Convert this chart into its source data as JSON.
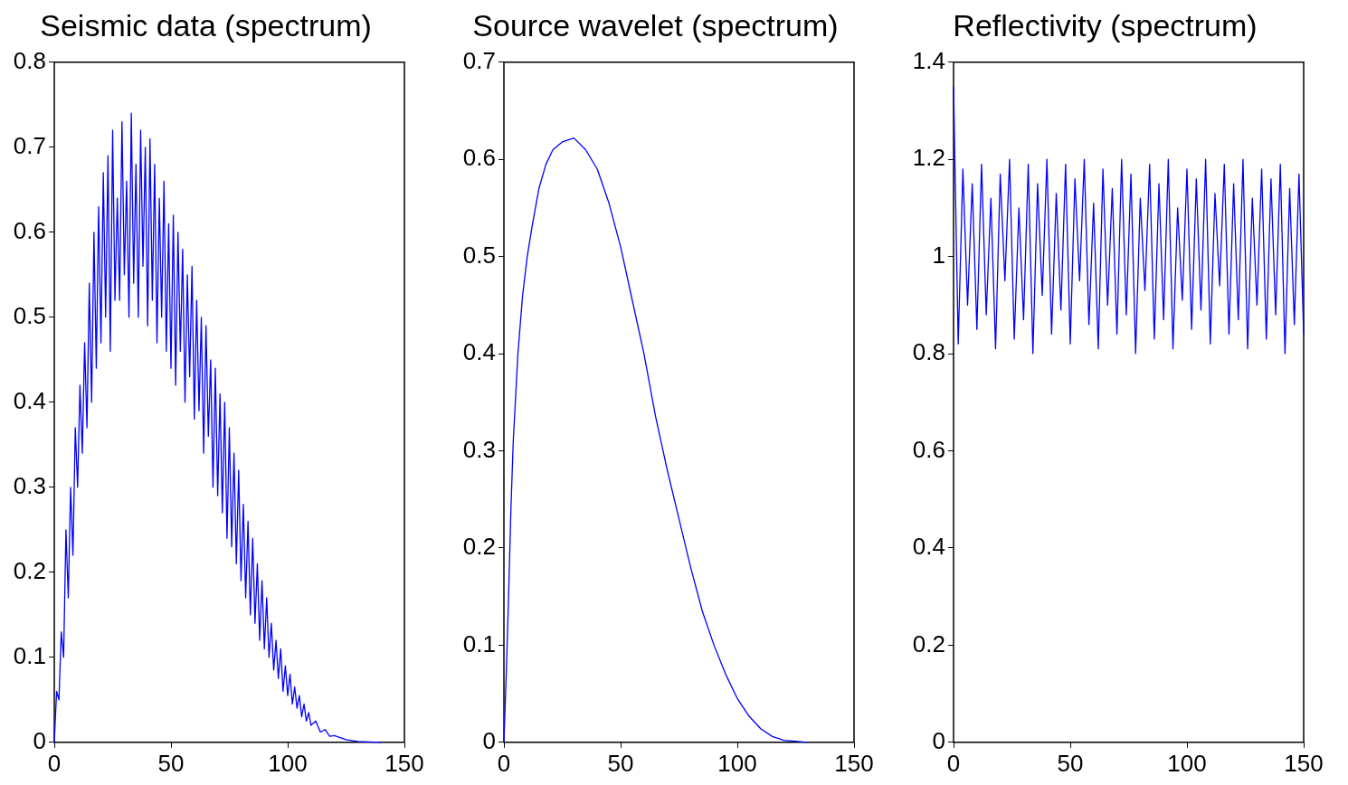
{
  "chart_data": [
    {
      "type": "line",
      "title": "Seismic data (spectrum)",
      "color": "#0000ff",
      "grid": false,
      "legend": false,
      "marker": "none",
      "xlim": [
        0,
        150
      ],
      "xticks": [
        0,
        50,
        100,
        150
      ],
      "ylim": [
        0,
        0.8
      ],
      "yticks": [
        0,
        0.1,
        0.2,
        0.3,
        0.4,
        0.5,
        0.6,
        0.7,
        0.8
      ],
      "x": [
        0,
        1,
        2,
        3,
        4,
        5,
        6,
        7,
        8,
        9,
        10,
        11,
        12,
        13,
        14,
        15,
        16,
        17,
        18,
        19,
        20,
        21,
        22,
        23,
        24,
        25,
        26,
        27,
        28,
        29,
        30,
        31,
        32,
        33,
        34,
        35,
        36,
        37,
        38,
        39,
        40,
        41,
        42,
        43,
        44,
        45,
        46,
        47,
        48,
        49,
        50,
        51,
        52,
        53,
        54,
        55,
        56,
        57,
        58,
        59,
        60,
        61,
        62,
        63,
        64,
        65,
        66,
        67,
        68,
        69,
        70,
        71,
        72,
        73,
        74,
        75,
        76,
        77,
        78,
        79,
        80,
        81,
        82,
        83,
        84,
        85,
        86,
        87,
        88,
        89,
        90,
        91,
        92,
        93,
        94,
        95,
        96,
        97,
        98,
        99,
        100,
        101,
        102,
        103,
        104,
        105,
        106,
        107,
        108,
        109,
        110,
        112,
        114,
        116,
        118,
        120,
        125,
        130,
        140
      ],
      "values": [
        0,
        0.06,
        0.05,
        0.13,
        0.1,
        0.25,
        0.17,
        0.3,
        0.22,
        0.37,
        0.3,
        0.42,
        0.34,
        0.47,
        0.37,
        0.54,
        0.4,
        0.6,
        0.44,
        0.63,
        0.47,
        0.67,
        0.5,
        0.69,
        0.46,
        0.72,
        0.52,
        0.64,
        0.52,
        0.73,
        0.55,
        0.66,
        0.5,
        0.74,
        0.54,
        0.68,
        0.5,
        0.72,
        0.56,
        0.7,
        0.49,
        0.71,
        0.52,
        0.68,
        0.47,
        0.64,
        0.5,
        0.66,
        0.46,
        0.61,
        0.44,
        0.62,
        0.42,
        0.6,
        0.46,
        0.58,
        0.4,
        0.55,
        0.43,
        0.56,
        0.38,
        0.52,
        0.39,
        0.5,
        0.34,
        0.49,
        0.36,
        0.45,
        0.3,
        0.44,
        0.29,
        0.41,
        0.27,
        0.4,
        0.24,
        0.37,
        0.23,
        0.34,
        0.21,
        0.32,
        0.19,
        0.28,
        0.17,
        0.26,
        0.15,
        0.24,
        0.14,
        0.21,
        0.12,
        0.19,
        0.11,
        0.17,
        0.1,
        0.14,
        0.085,
        0.12,
        0.075,
        0.11,
        0.06,
        0.09,
        0.055,
        0.08,
        0.045,
        0.065,
        0.04,
        0.055,
        0.03,
        0.045,
        0.025,
        0.035,
        0.02,
        0.025,
        0.012,
        0.015,
        0.007,
        0.008,
        0.003,
        0.001,
        0
      ]
    },
    {
      "type": "line",
      "title": "Source wavelet (spectrum)",
      "color": "#0000ff",
      "grid": false,
      "legend": false,
      "marker": "none",
      "xlim": [
        0,
        150
      ],
      "xticks": [
        0,
        50,
        100,
        150
      ],
      "ylim": [
        0,
        0.7
      ],
      "yticks": [
        0,
        0.1,
        0.2,
        0.3,
        0.4,
        0.5,
        0.6,
        0.7
      ],
      "x": [
        0,
        1,
        2,
        3,
        4,
        6,
        8,
        10,
        12,
        15,
        18,
        21,
        25,
        30,
        35,
        40,
        45,
        50,
        55,
        60,
        65,
        70,
        75,
        80,
        85,
        90,
        95,
        100,
        105,
        110,
        115,
        120,
        125,
        130
      ],
      "values": [
        0,
        0.07,
        0.15,
        0.24,
        0.31,
        0.4,
        0.46,
        0.5,
        0.53,
        0.57,
        0.595,
        0.61,
        0.618,
        0.622,
        0.61,
        0.59,
        0.555,
        0.51,
        0.455,
        0.4,
        0.335,
        0.28,
        0.23,
        0.18,
        0.135,
        0.1,
        0.07,
        0.045,
        0.027,
        0.014,
        0.006,
        0.002,
        0.001,
        0
      ]
    },
    {
      "type": "line",
      "title": "Reflectivity (spectrum)",
      "color": "#0000ff",
      "grid": false,
      "legend": false,
      "marker": "none",
      "xlim": [
        0,
        150
      ],
      "xticks": [
        0,
        50,
        100,
        150
      ],
      "ylim": [
        0,
        1.4
      ],
      "yticks": [
        0,
        0.2,
        0.4,
        0.6,
        0.8,
        1,
        1.2,
        1.4
      ],
      "x": [
        0,
        2,
        4,
        6,
        8,
        10,
        12,
        14,
        16,
        18,
        20,
        22,
        24,
        26,
        28,
        30,
        32,
        34,
        36,
        38,
        40,
        42,
        44,
        46,
        48,
        50,
        52,
        54,
        56,
        58,
        60,
        62,
        64,
        66,
        68,
        70,
        72,
        74,
        76,
        78,
        80,
        82,
        84,
        86,
        88,
        90,
        92,
        94,
        96,
        98,
        100,
        102,
        104,
        106,
        108,
        110,
        112,
        114,
        116,
        118,
        120,
        122,
        124,
        126,
        128,
        130,
        132,
        134,
        136,
        138,
        140,
        142,
        144,
        146,
        148,
        150
      ],
      "values": [
        1.35,
        0.82,
        1.18,
        0.9,
        1.15,
        0.85,
        1.19,
        0.88,
        1.12,
        0.81,
        1.17,
        0.95,
        1.2,
        0.83,
        1.1,
        0.87,
        1.19,
        0.8,
        1.15,
        0.92,
        1.2,
        0.84,
        1.13,
        0.89,
        1.19,
        0.82,
        1.16,
        0.95,
        1.2,
        0.86,
        1.11,
        0.81,
        1.18,
        0.9,
        1.14,
        0.84,
        1.2,
        0.88,
        1.17,
        0.8,
        1.12,
        0.93,
        1.19,
        0.83,
        1.15,
        0.87,
        1.2,
        0.81,
        1.1,
        0.91,
        1.18,
        0.85,
        1.16,
        0.89,
        1.2,
        0.82,
        1.13,
        0.94,
        1.19,
        0.84,
        1.15,
        0.87,
        1.2,
        0.81,
        1.12,
        0.9,
        1.18,
        0.83,
        1.16,
        0.88,
        1.19,
        0.8,
        1.14,
        0.86,
        1.17,
        0.84
      ]
    }
  ]
}
